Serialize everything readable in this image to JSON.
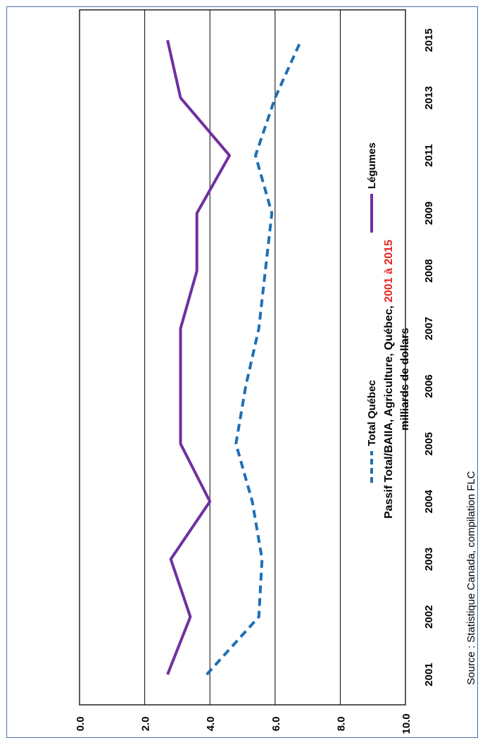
{
  "chart_data": {
    "type": "line",
    "title_parts": [
      {
        "text": "Passif Total/BAIIA, Agriculture, Québec, ",
        "color": "#000000"
      },
      {
        "text": "2001 à 2015",
        "color": "#e8251f"
      }
    ],
    "subtitle": "milliards de dollars",
    "categories": [
      "2001",
      "2002",
      "2003",
      "2004",
      "2005",
      "2006",
      "2007",
      "2008",
      "2009",
      "2011",
      "2013",
      "2015"
    ],
    "series": [
      {
        "name": "Total Québec",
        "color": "#1f6fb5",
        "style": "dashed",
        "values": [
          3.9,
          5.5,
          5.6,
          5.3,
          4.8,
          5.1,
          5.5,
          5.7,
          5.9,
          5.4,
          6.0,
          6.8
        ]
      },
      {
        "name": "Légumes",
        "color": "#7030a0",
        "style": "solid",
        "values": [
          2.7,
          3.4,
          2.8,
          4.0,
          3.1,
          3.1,
          3.1,
          3.6,
          3.6,
          4.6,
          3.1,
          2.7
        ]
      }
    ],
    "yticks": [
      "0.0",
      "2.0",
      "4.0",
      "6.0",
      "8.0",
      "10.0"
    ],
    "ylim": [
      0,
      10
    ],
    "grid": true,
    "legend_position": "inside-right",
    "orientation": "rotated-90-ccw"
  },
  "source": "Source : Statistique Canada, compilation FLC"
}
